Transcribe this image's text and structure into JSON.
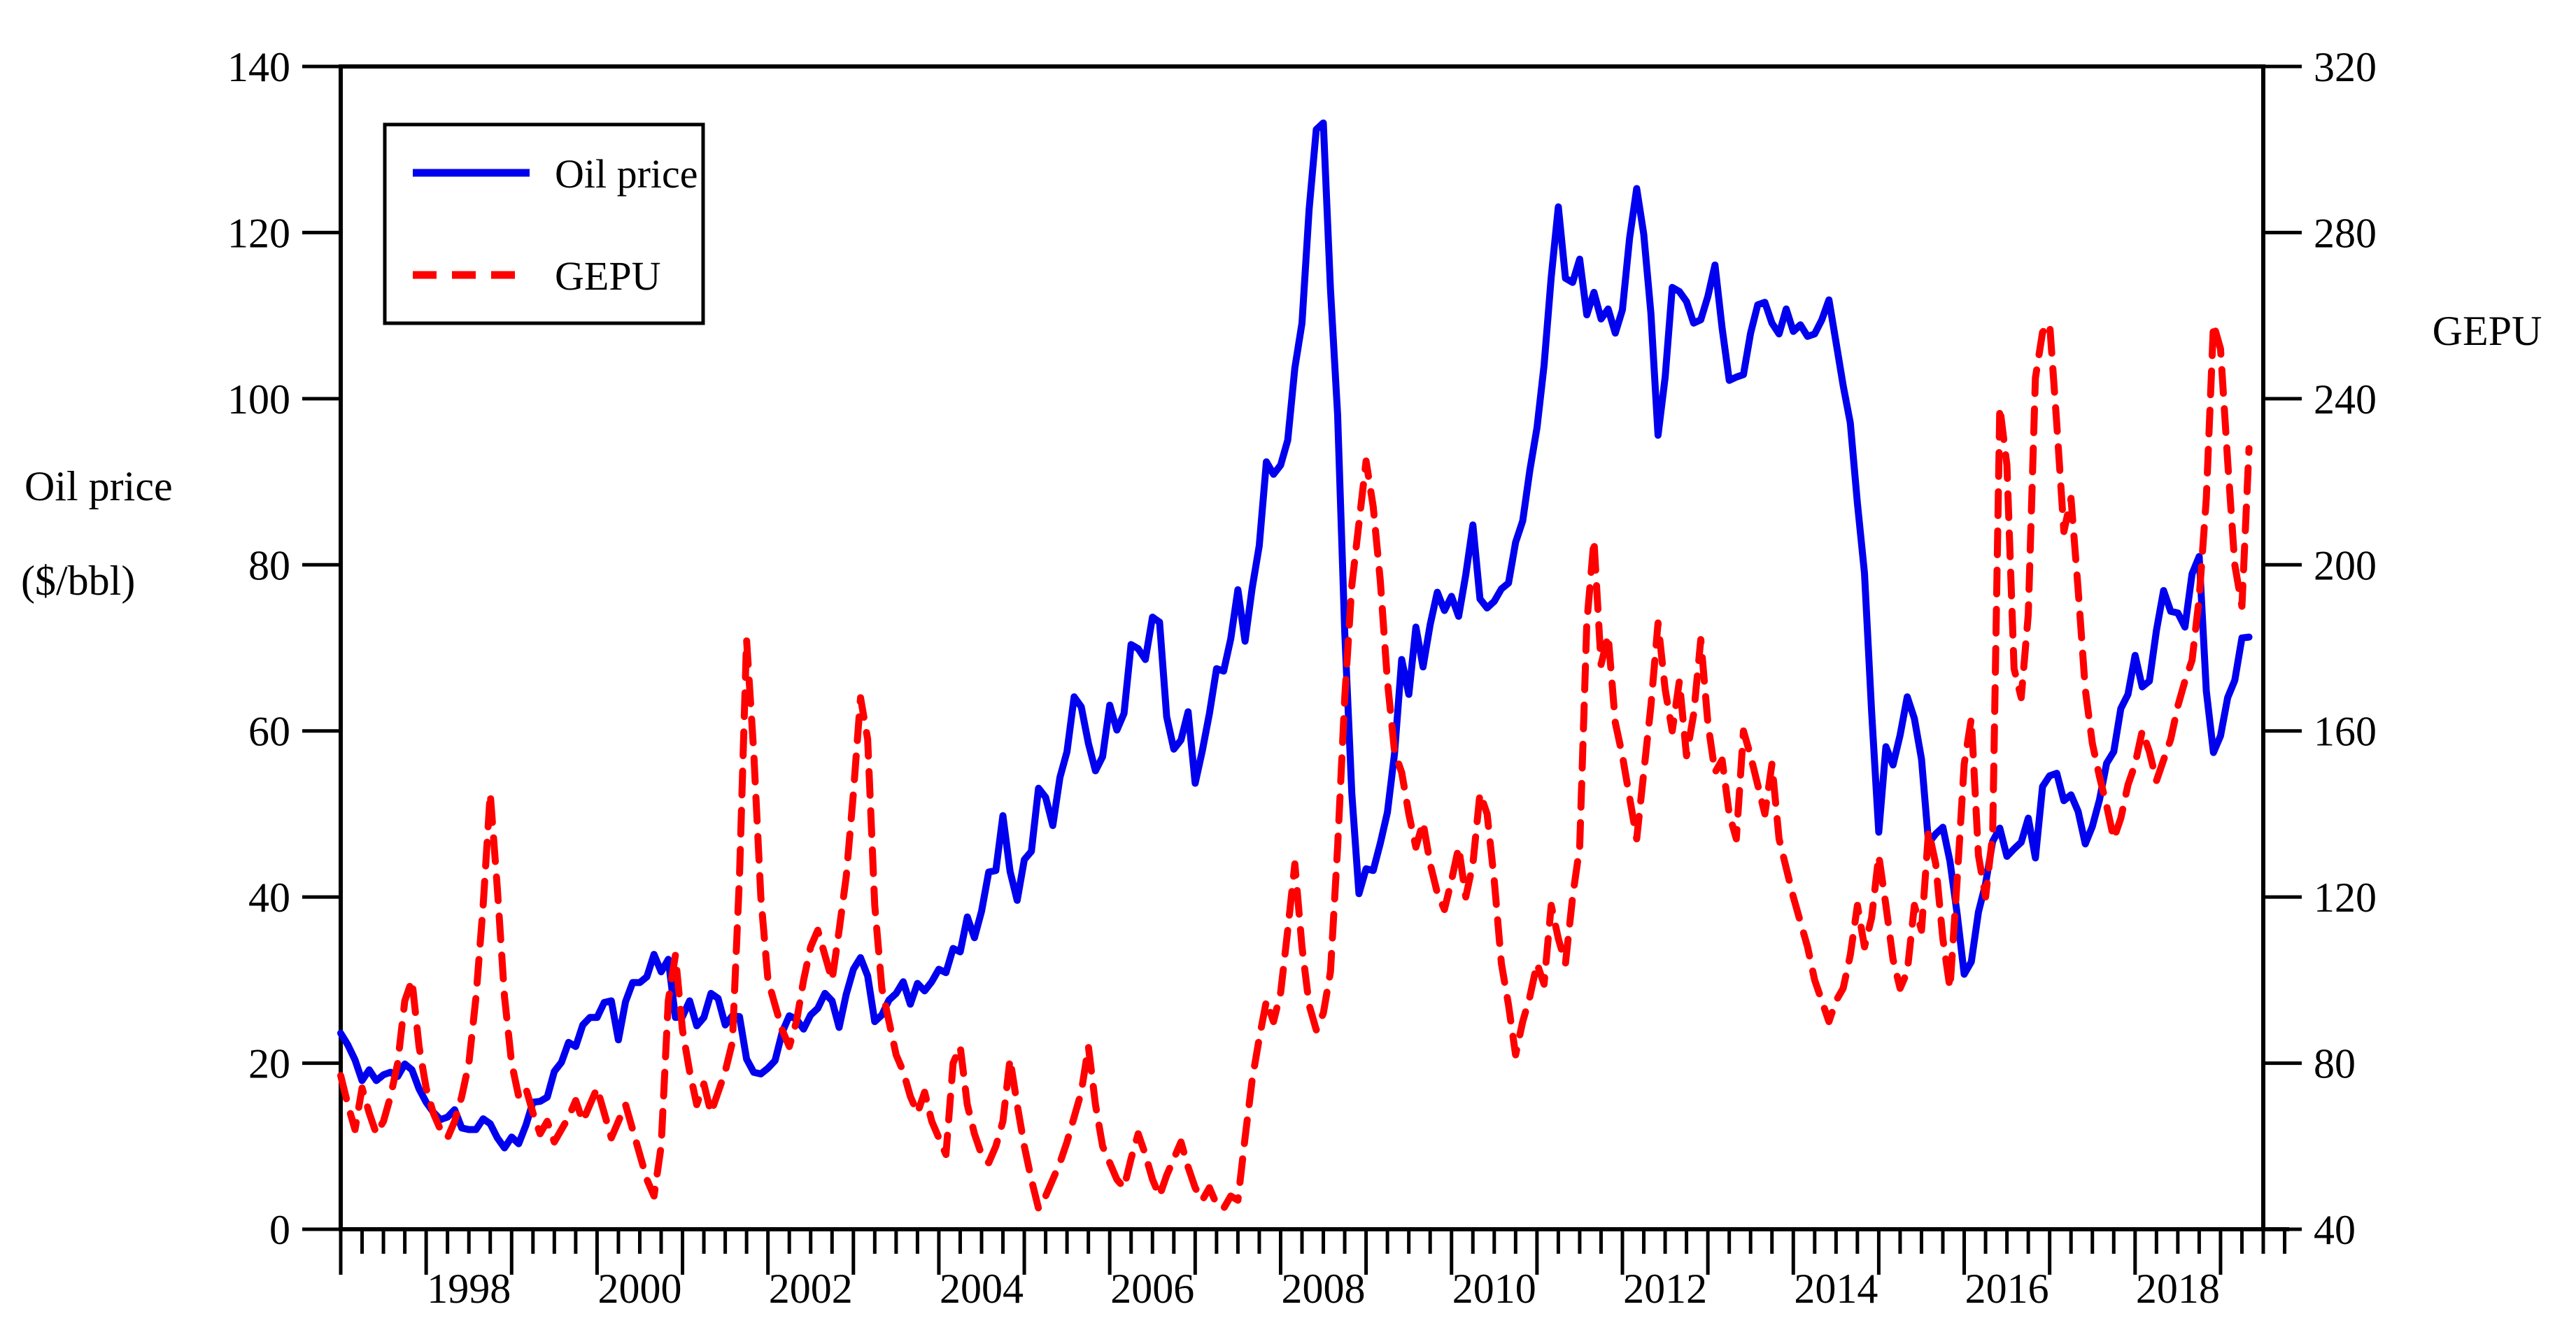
{
  "chart_data": {
    "type": "line",
    "title": "",
    "frequency": "monthly",
    "x_start": "1997-01",
    "x_end": "2019-05",
    "grid": "off",
    "legend_position": "top-left-inside-box",
    "axis_color": "#000000",
    "background": "#ffffff",
    "ylabel_left_line1": "Oil price",
    "ylabel_left_line2": "($/bbl)",
    "ylabel_right": "GEPU",
    "left_axis": {
      "min": 0,
      "max": 140,
      "ticks": [
        0,
        20,
        40,
        60,
        80,
        100,
        120,
        140
      ]
    },
    "right_axis": {
      "min": 40,
      "max": 320,
      "ticks": [
        40,
        80,
        120,
        160,
        200,
        240,
        280,
        320
      ]
    },
    "x_axis": {
      "tick_label_years": [
        1998,
        2000,
        2002,
        2004,
        2006,
        2008,
        2010,
        2012,
        2014,
        2016,
        2018
      ],
      "minor_ticks": "quarterly",
      "major_ticks": "yearly"
    },
    "series": [
      {
        "name": "Oil price",
        "axis": "left",
        "color": "#0000ee",
        "style": "solid",
        "values": [
          23.6,
          22.2,
          20.4,
          17.9,
          19.2,
          17.9,
          18.6,
          18.9,
          18.4,
          19.9,
          19.2,
          16.9,
          15.3,
          14.1,
          13.2,
          13.5,
          14.4,
          12.2,
          12.0,
          12.0,
          13.3,
          12.7,
          11.0,
          9.8,
          11.1,
          10.3,
          12.5,
          15.3,
          15.4,
          15.9,
          19.0,
          20.1,
          22.5,
          22.0,
          24.6,
          25.5,
          25.5,
          27.3,
          27.5,
          22.8,
          27.4,
          29.7,
          29.7,
          30.4,
          33.1,
          31.0,
          32.5,
          25.5,
          25.6,
          27.5,
          24.5,
          25.5,
          28.4,
          27.8,
          24.6,
          25.7,
          25.6,
          20.5,
          18.9,
          18.7,
          19.4,
          20.3,
          23.7,
          25.7,
          25.3,
          24.1,
          25.8,
          26.6,
          28.4,
          27.5,
          24.3,
          28.3,
          31.3,
          32.7,
          30.5,
          25.0,
          25.8,
          27.6,
          28.4,
          29.8,
          27.1,
          29.6,
          28.7,
          29.8,
          31.3,
          30.9,
          33.8,
          33.4,
          37.6,
          35.1,
          38.3,
          43.0,
          43.2,
          49.8,
          43.1,
          39.6,
          44.5,
          45.5,
          53.1,
          52.0,
          48.6,
          54.4,
          57.5,
          64.1,
          62.9,
          58.5,
          55.2,
          56.9,
          63.1,
          60.1,
          62.1,
          70.4,
          69.9,
          68.6,
          73.7,
          73.1,
          61.7,
          57.8,
          58.9,
          62.3,
          53.7,
          57.6,
          62.1,
          67.5,
          67.2,
          71.1,
          77.0,
          70.8,
          77.2,
          82.3,
          92.4,
          90.9,
          92.0,
          95.0,
          103.7,
          109.1,
          122.8,
          132.4,
          133.2,
          113.2,
          98.1,
          71.9,
          52.5,
          40.4,
          43.4,
          43.2,
          46.5,
          50.2,
          57.3,
          68.6,
          64.4,
          72.5,
          67.7,
          72.8,
          76.7,
          74.5,
          76.2,
          73.8,
          78.8,
          84.8,
          75.9,
          74.8,
          75.6,
          77.1,
          77.8,
          82.7,
          85.3,
          91.4,
          96.5,
          104.0,
          114.6,
          123.1,
          114.5,
          114.0,
          116.8,
          110.1,
          112.8,
          109.6,
          110.8,
          107.9,
          110.7,
          119.3,
          125.3,
          119.8,
          110.3,
          95.6,
          102.6,
          113.4,
          112.9,
          111.7,
          109.1,
          109.5,
          112.3,
          116.1,
          108.5,
          102.2,
          102.6,
          102.9,
          107.9,
          111.3,
          111.6,
          109.1,
          107.8,
          110.8,
          108.1,
          108.9,
          107.5,
          107.8,
          109.5,
          111.9,
          106.8,
          101.6,
          97.1,
          87.4,
          79.0,
          62.3,
          47.8,
          58.1,
          55.9,
          59.5,
          64.1,
          61.5,
          56.6,
          46.5,
          47.6,
          48.4,
          44.3,
          38.0,
          30.7,
          32.2,
          38.2,
          41.6,
          46.7,
          48.3,
          44.9,
          45.8,
          46.6,
          49.5,
          44.7,
          53.3,
          54.6,
          54.9,
          51.6,
          52.3,
          50.3,
          46.4,
          48.5,
          51.7,
          56.1,
          57.5,
          62.7,
          64.4,
          69.1,
          65.3,
          66.0,
          72.1,
          76.9,
          74.4,
          74.2,
          72.5,
          78.9,
          81.0,
          64.8,
          57.4,
          59.4,
          64.0,
          66.1,
          71.2,
          71.3
        ]
      },
      {
        "name": "GEPU",
        "axis": "right",
        "color": "#ff0000",
        "style": "dashed",
        "values": [
          77,
          70,
          64,
          74,
          68,
          63,
          66,
          72,
          80,
          95,
          100,
          84,
          74,
          68,
          64,
          62,
          66,
          72,
          80,
          96,
          118,
          145,
          122,
          96,
          80,
          72,
          74,
          68,
          63,
          66,
          61,
          64,
          67,
          71,
          66,
          70,
          74,
          68,
          62,
          66,
          70,
          64,
          58,
          52,
          48,
          60,
          95,
          106,
          88,
          78,
          70,
          75,
          68,
          73,
          78,
          85,
          125,
          182,
          155,
          120,
          100,
          94,
          88,
          84,
          90,
          100,
          108,
          112,
          106,
          100,
          112,
          125,
          145,
          168,
          158,
          118,
          98,
          90,
          82,
          78,
          72,
          68,
          73,
          66,
          62,
          58,
          80,
          84,
          70,
          63,
          58,
          56,
          60,
          66,
          81,
          70,
          60,
          52,
          45,
          48,
          52,
          56,
          61,
          67,
          73,
          84,
          70,
          60,
          56,
          52,
          50,
          57,
          63,
          58,
          52,
          48,
          53,
          57,
          61,
          55,
          50,
          47,
          50,
          46,
          45,
          48,
          47,
          62,
          76,
          86,
          95,
          90,
          97,
          112,
          128,
          108,
          94,
          88,
          92,
          102,
          132,
          168,
          195,
          210,
          225,
          214,
          196,
          172,
          155,
          150,
          140,
          132,
          138,
          128,
          121,
          117,
          124,
          132,
          120,
          128,
          145,
          140,
          124,
          104,
          94,
          82,
          90,
          96,
          104,
          99,
          118,
          110,
          104,
          120,
          132,
          186,
          206,
          176,
          183,
          162,
          154,
          144,
          134,
          150,
          166,
          186,
          170,
          160,
          172,
          154,
          164,
          182,
          162,
          150,
          153,
          140,
          134,
          160,
          154,
          147,
          140,
          152,
          134,
          127,
          120,
          114,
          108,
          100,
          95,
          90,
          95,
          98,
          106,
          118,
          108,
          115,
          130,
          118,
          105,
          98,
          102,
          118,
          112,
          136,
          128,
          110,
          98,
          124,
          152,
          163,
          130,
          120,
          135,
          238,
          224,
          175,
          168,
          188,
          245,
          256,
          258,
          234,
          208,
          216,
          194,
          170,
          157,
          149,
          142,
          134,
          139,
          147,
          152,
          160,
          155,
          148,
          153,
          158,
          166,
          172,
          177,
          192,
          216,
          258,
          252,
          225,
          200,
          190,
          228
        ]
      }
    ]
  }
}
